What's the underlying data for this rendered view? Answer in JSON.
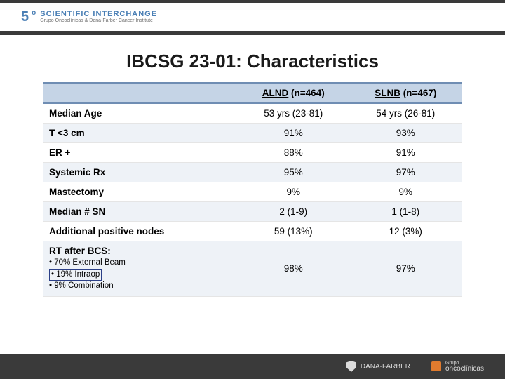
{
  "brand": {
    "five": "5",
    "ord": "o",
    "main": "SCIENTIFIC INTERCHANGE",
    "sub": "Grupo Oncoclínicas & Dana-Farber Cancer Institute"
  },
  "title": "IBCSG 23-01: Characteristics",
  "table": {
    "header": {
      "c0": "",
      "c1_u": "ALND",
      "c1_r": " (n=464)",
      "c2_u": "SLNB",
      "c2_r": " (n=467)"
    },
    "rows": [
      {
        "label": "Median Age",
        "a": "53 yrs (23-81)",
        "b": "54 yrs (26-81)"
      },
      {
        "label": "T <3 cm",
        "a": "91%",
        "b": "93%"
      },
      {
        "label": "ER +",
        "a": "88%",
        "b": "91%"
      },
      {
        "label": "Systemic Rx",
        "a": "95%",
        "b": "97%"
      },
      {
        "label": "Mastectomy",
        "a": "9%",
        "b": "9%"
      },
      {
        "label": "Median # SN",
        "a": "2 (1-9)",
        "b": "1 (1-8)"
      },
      {
        "label": "Additional positive nodes",
        "a": "59 (13%)",
        "b": "12 (3%)"
      }
    ],
    "rt": {
      "title": "RT after BCS:",
      "l1": "• 70% External Beam",
      "l2": "• 19% Intraop",
      "l3": "• 9%   Combination",
      "a": "98%",
      "b": "97%"
    }
  },
  "footer": {
    "f1": "DANA-FARBER",
    "f2": "oncoclínicas",
    "f2pre": "Grupo"
  }
}
